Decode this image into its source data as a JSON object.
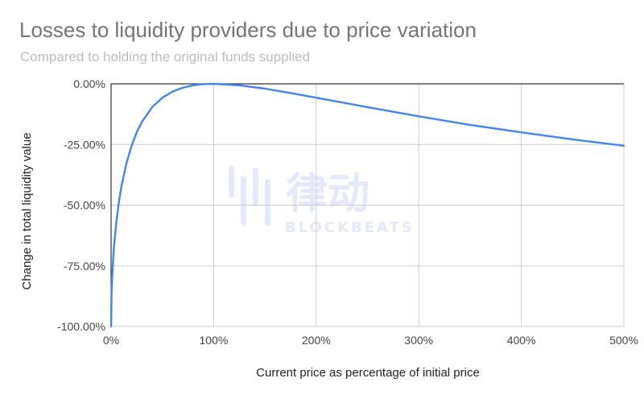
{
  "title": "Losses to liquidity providers due to price variation",
  "subtitle": "Compared to holding the original funds supplied",
  "watermark": {
    "text": "律动",
    "subtext": "BLOCKBEATS",
    "color": "#e3e9fb"
  },
  "chart_data": {
    "type": "line",
    "title": "Losses to liquidity providers due to price variation",
    "subtitle": "Compared to holding the original funds supplied",
    "xlabel": "Current price as percentage of initial price",
    "ylabel": "Change in total liquidity value",
    "xlim": [
      0,
      500
    ],
    "ylim": [
      -100,
      0
    ],
    "x_ticks": [
      "0%",
      "100%",
      "200%",
      "300%",
      "400%",
      "500%"
    ],
    "y_ticks": [
      "0.00%",
      "-25.00%",
      "-50.00%",
      "-75.00%",
      "-100.00%"
    ],
    "grid": true,
    "line_color": "#4285f4",
    "series": [
      {
        "x": [
          0,
          0.5,
          1,
          2,
          3,
          5,
          7.5,
          10,
          15,
          20,
          25,
          30,
          40,
          50,
          60,
          70,
          80,
          90,
          100,
          125,
          150,
          175,
          200,
          250,
          300,
          350,
          400,
          450,
          500
        ],
        "values": [
          -100,
          -85.9,
          -80.2,
          -72.3,
          -66.4,
          -57.4,
          -49.0,
          -42.5,
          -32.7,
          -25.5,
          -20.0,
          -15.7,
          -9.6,
          -5.7,
          -3.2,
          -1.6,
          -0.6,
          -0.1,
          0,
          -0.6,
          -2.0,
          -3.8,
          -5.7,
          -9.6,
          -13.4,
          -16.9,
          -20.0,
          -22.9,
          -25.5
        ]
      }
    ]
  }
}
